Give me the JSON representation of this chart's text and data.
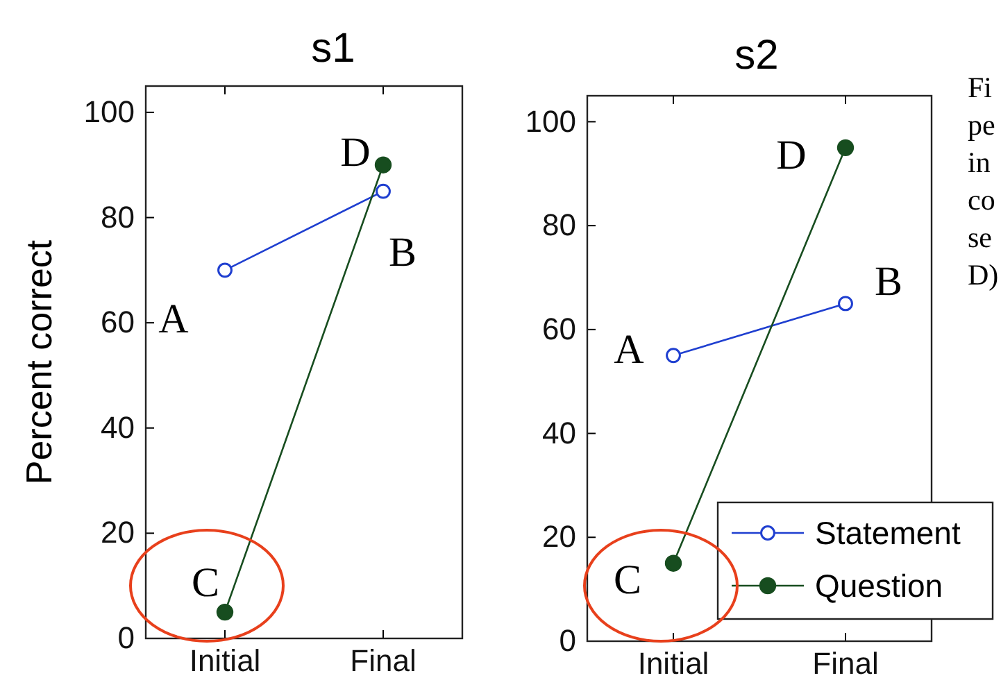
{
  "chart_data": [
    {
      "type": "line",
      "title": "s1",
      "ylabel": "Percent correct",
      "categories": [
        "Initial",
        "Final"
      ],
      "ylim": [
        0,
        105
      ],
      "yticks": [
        0,
        20,
        40,
        60,
        80,
        100
      ],
      "marker": "circle",
      "legend": false,
      "series": [
        {
          "color": "#1f3fd0",
          "values": [
            70,
            85
          ]
        },
        {
          "color": "#174d1f",
          "values": [
            5,
            90
          ]
        }
      ],
      "annotations": [
        "A",
        "B",
        "C",
        "D"
      ]
    },
    {
      "type": "line",
      "title": "s2",
      "categories": [
        "Initial",
        "Final"
      ],
      "ylim": [
        0,
        105
      ],
      "yticks": [
        0,
        20,
        40,
        60,
        80,
        100
      ],
      "marker": "circle",
      "legend": "bottom right",
      "series": [
        {
          "name": "Statement",
          "color": "#1f3fd0",
          "values": [
            55,
            65
          ]
        },
        {
          "name": "Question",
          "color": "#174d1f",
          "values": [
            15,
            95
          ]
        }
      ],
      "annotations": [
        "A",
        "B",
        "C",
        "D",
        "Fi\npe\nin\nco\nse\nD)"
      ]
    }
  ]
}
